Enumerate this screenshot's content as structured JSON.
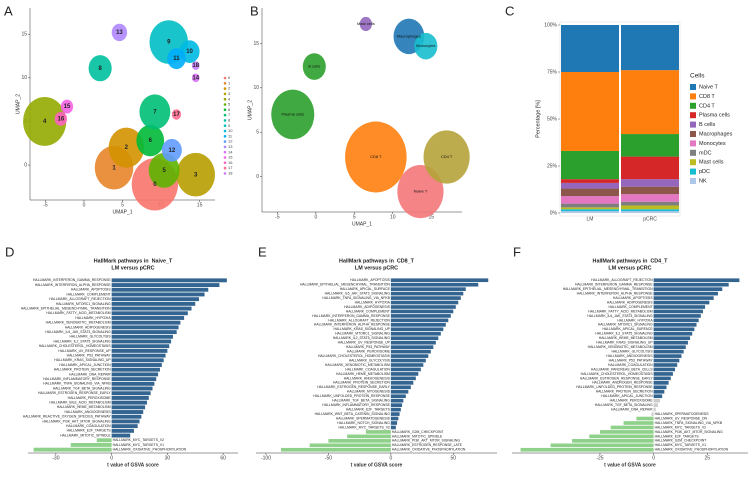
{
  "chart_data": [
    {
      "type": "scatter",
      "label": "A",
      "xlabel": "UMAP_1",
      "ylabel": "UMAP_2",
      "xlim": [
        -7,
        17
      ],
      "ylim": [
        -4,
        18
      ],
      "xticks": [
        -5,
        0,
        5,
        10,
        15
      ],
      "yticks": [
        0,
        5,
        10,
        15
      ],
      "legend": true,
      "points": {
        "labels": [
          "0",
          "1",
          "2",
          "3",
          "4",
          "5",
          "6",
          "7",
          "8",
          "9",
          "10",
          "11",
          "12",
          "13",
          "14",
          "15",
          "16",
          "17",
          "18"
        ],
        "x": [
          9.2,
          3.9,
          5.5,
          14.5,
          -5.1,
          10.4,
          8.6,
          9.2,
          2.1,
          11,
          13.7,
          12,
          11.4,
          4.6,
          14.5,
          -2.2,
          -3,
          12,
          14.5
        ],
        "y": [
          -2.2,
          -0.3,
          2,
          -1.1,
          5,
          -0.6,
          2.8,
          6.1,
          11.1,
          14.1,
          13,
          12.2,
          1.7,
          15.2,
          10,
          6.7,
          5.3,
          5.8,
          11.4
        ],
        "sizes": [
          3,
          2.5,
          2.3,
          2.5,
          2.8,
          2,
          1.8,
          2,
          1.5,
          2.5,
          1.3,
          1.2,
          1.3,
          1,
          0.5,
          0.8,
          0.8,
          0.6,
          0.5
        ],
        "colors": [
          "#F8766D",
          "#E8852B",
          "#D39200",
          "#B79F00",
          "#93AA00",
          "#5EB300",
          "#00BA38",
          "#00BF74",
          "#00C19F",
          "#00BFC4",
          "#00B9E3",
          "#00ADFA",
          "#619CFF",
          "#AE87FF",
          "#DB72FB",
          "#F564E3",
          "#FF61C3",
          "#FF6C91",
          "#C77CFF"
        ]
      }
    },
    {
      "type": "scatter",
      "label": "B",
      "xlabel": "UMAP_1",
      "ylabel": "UMAP_2",
      "xlim": [
        -7,
        19
      ],
      "ylim": [
        -4,
        19
      ],
      "xticks": [
        -5,
        0,
        5,
        10,
        15
      ],
      "yticks": [
        0,
        5,
        10,
        15
      ],
      "legend": false,
      "points": {
        "labels": [
          "Plasma cells",
          "B cells",
          "Mast cells",
          "Macrophages",
          "Monocytes",
          "CD8 T",
          "Naive T",
          "CD4 T"
        ],
        "x": [
          -3,
          -0.2,
          6.5,
          12.1,
          14.3,
          7.8,
          13.6,
          17
        ],
        "y": [
          7,
          12.4,
          17.2,
          15.8,
          14.7,
          2.2,
          -1.7,
          2.2
        ],
        "sizes": [
          2.8,
          1.5,
          0.8,
          2,
          1.5,
          4,
          3,
          3
        ],
        "colors": [
          "#2ca02c",
          "#2ca02c",
          "#9467bd",
          "#1f77b4",
          "#17becf",
          "#ff7f0e",
          "#f4777a",
          "#b5a33a"
        ]
      }
    },
    {
      "type": "bar",
      "stacked": true,
      "label": "C",
      "ylabel": "Percentage [%]",
      "legend_title": "Cells",
      "categories": [
        "LM",
        "pCRC"
      ],
      "ylim": [
        0,
        100
      ],
      "yticks": [
        {
          "value": 0,
          "label": "0%"
        },
        {
          "value": 25,
          "label": "25%"
        },
        {
          "value": 50,
          "label": "50%"
        },
        {
          "value": 75,
          "label": "75%"
        },
        {
          "value": 100,
          "label": "100%"
        }
      ],
      "series": [
        {
          "name": "Naive T",
          "color": "#1f77b4",
          "values": [
            25,
            24
          ]
        },
        {
          "name": "CD8 T",
          "color": "#ff7f0e",
          "values": [
            42,
            34
          ]
        },
        {
          "name": "CD4 T",
          "color": "#2ca02c",
          "values": [
            15,
            12
          ]
        },
        {
          "name": "Plasma cells",
          "color": "#d62728",
          "values": [
            2,
            12
          ]
        },
        {
          "name": "B cells",
          "color": "#9467bd",
          "values": [
            3,
            4
          ]
        },
        {
          "name": "Macrophages",
          "color": "#8c564b",
          "values": [
            4,
            4
          ]
        },
        {
          "name": "Monocytes",
          "color": "#e377c2",
          "values": [
            4,
            4
          ]
        },
        {
          "name": "mDC",
          "color": "#7f7f7f",
          "values": [
            2,
            2
          ]
        },
        {
          "name": "Mast cells",
          "color": "#bcbd22",
          "values": [
            1,
            2
          ]
        },
        {
          "name": "pDC",
          "color": "#17becf",
          "values": [
            1,
            1
          ]
        },
        {
          "name": "NK",
          "color": "#aec7e8",
          "values": [
            1,
            1
          ]
        }
      ]
    },
    {
      "type": "barh",
      "label": "D",
      "title": "HallMark pathways in  Naive_T",
      "subtitle": "LM versus pCRC",
      "xlabel": "t value of GSVA score",
      "xlim": [
        -45,
        68
      ],
      "xticks": [
        -30,
        0,
        30,
        60
      ],
      "color_up": "#346591",
      "color_down": "#8fd18a",
      "categories": [
        "HALLMARK_INTERFERON_GAMMA_RESPONSE",
        "HALLMARK_INTERFERON_ALPHA_RESPONSE",
        "HALLMARK_APOPTOSIS",
        "HALLMARK_COMPLEMENT",
        "HALLMARK_ALLOGRAFT_REJECTION",
        "HALLMARK_MTORC1_SIGNALING",
        "HALLMARK_EPITHELIAL_MESENCHYMAL_TRANSITION",
        "HALLMARK_FATTY_ACID_METABOLISM",
        "HALLMARK_HYPOXIA",
        "HALLMARK_XENOBIOTIC_METABOLISM",
        "HALLMARK_ADIPOGENESIS",
        "HALLMARK_IL6_JAK_STAT3_SIGNALING",
        "HALLMARK_GLYCOLYSIS",
        "HALLMARK_IL2_STAT5_SIGNALING",
        "HALLMARK_CHOLESTEROL_HOMEOSTASIS",
        "HALLMARK_UV_RESPONSE_UP",
        "HALLMARK_P53_PATHWAY",
        "HALLMARK_KRAS_SIGNALING_UP",
        "HALLMARK_APICAL_JUNCTION",
        "HALLMARK_PROTEIN_SECRETION",
        "HALLMARK_DNA_REPAIR",
        "HALLMARK_INFLAMMATORY_RESPONSE",
        "HALLMARK_TNFA_SIGNALING_VIA_NFKB",
        "HALLMARK_TGF_BETA_SIGNALING",
        "HALLMARK_ESTROGEN_RESPONSE_EARLY",
        "HALLMARK_PEROXISOME",
        "HALLMARK_BILE_ACID_METABOLISM",
        "HALLMARK_HEME_METABOLISM",
        "HALLMARK_ANGIOGENESIS",
        "HALLMARK_REACTIVE_OXYGEN_SPECIES_PATHWAY",
        "HALLMARK_PI3K_AKT_MTOR_SIGNALING",
        "HALLMARK_COAGULATION",
        "HALLMARK_E2F_TARGETS",
        "HALLMARK_MITOTIC_SPINDLE",
        "HALLMARK_MYC_TARGETS_V2",
        "HALLMARK_MYC_TARGETS_V1",
        "HALLMARK_OXIDATIVE_PHOSPHORYLATION"
      ],
      "values": [
        62,
        58,
        52,
        50,
        47,
        45,
        43,
        41,
        39,
        37,
        36,
        35,
        33,
        32,
        31,
        30,
        29,
        28,
        27,
        26,
        25,
        24,
        23,
        22,
        21,
        20,
        19,
        18,
        17,
        16,
        15,
        14,
        12,
        10,
        -8,
        -22,
        -42
      ]
    },
    {
      "type": "barh",
      "label": "E",
      "title": "HallMark pathways in  CD8_T",
      "subtitle": "LM versus pCRC",
      "xlabel": "t value of GSVA score",
      "xlim": [
        -108,
        85
      ],
      "xticks": [
        -100,
        -50,
        0,
        50
      ],
      "color_up": "#346591",
      "color_down": "#8fd18a",
      "categories": [
        "HALLMARK_APOPTOSIS",
        "HALLMARK_EPITHELIAL_MESENCHYMAL_TRANSITION",
        "HALLMARK_APICAL_SURFACE",
        "HALLMARK_IL6_JAK_STAT3_SIGNALING",
        "HALLMARK_TNFA_SIGNALING_VIA_NFKB",
        "HALLMARK_HYPOXIA",
        "HALLMARK_ADIPOGENESIS",
        "HALLMARK_COMPLEMENT",
        "HALLMARK_INTERFERON_GAMMA_RESPONSE",
        "HALLMARK_ALLOGRAFT_REJECTION",
        "HALLMARK_INTERFERON_ALPHA_RESPONSE",
        "HALLMARK_KRAS_SIGNALING_UP",
        "HALLMARK_MTORC1_SIGNALING",
        "HALLMARK_IL2_STAT5_SIGNALING",
        "HALLMARK_UV_RESPONSE_UP",
        "HALLMARK_P53_PATHWAY",
        "HALLMARK_PEROXISOME",
        "HALLMARK_CHOLESTEROL_HOMEOSTASIS",
        "HALLMARK_GLYCOLYSIS",
        "HALLMARK_XENOBIOTIC_METABOLISM",
        "HALLMARK_COAGULATION",
        "HALLMARK_HEME_METABOLISM",
        "HALLMARK_ANGIOGENESIS",
        "HALLMARK_PROTEIN_SECRETION",
        "HALLMARK_ESTROGEN_RESPONSE_EARLY",
        "HALLMARK_MYOGENESIS",
        "HALLMARK_UNFOLDED_PROTEIN_RESPONSE",
        "HALLMARK_TGF_BETA_SIGNALING",
        "HALLMARK_INFLAMMATORY_RESPONSE",
        "HALLMARK_E2F_TARGETS",
        "HALLMARK_WNT_BETA_CATENIN_SIGNALING",
        "HALLMARK_SPERMATOGENESIS",
        "HALLMARK_NOTCH_SIGNALING",
        "HALLMARK_MYC_TARGETS_V2",
        "HALLMARK_G2M_CHECKPOINT",
        "HALLMARK_MITOTIC_SPINDLE",
        "HALLMARK_PI3K_AKT_MTOR_SIGNALING",
        "HALLMARK_ESTROGEN_RESPONSE_LATE",
        "HALLMARK_OXIDATIVE_PHOSPHORYLATION"
      ],
      "values": [
        78,
        70,
        60,
        58,
        56,
        54,
        52,
        50,
        48,
        46,
        44,
        42,
        40,
        38,
        36,
        34,
        32,
        30,
        28,
        26,
        24,
        22,
        20,
        18,
        16,
        14,
        12,
        10,
        9,
        8,
        7,
        6,
        5,
        4,
        -20,
        -35,
        -50,
        -65,
        -88
      ]
    },
    {
      "type": "barh",
      "label": "F",
      "title": "HallMark pathways in  CD4_T",
      "subtitle": "LM versus pCRC",
      "xlabel": "t value of GSVA score",
      "xlim": [
        -66,
        44
      ],
      "xticks": [
        -25,
        0,
        25
      ],
      "categories": [
        "HALLMARK_ALLOGRAFT_REJECTION",
        "HALLMARK_INTERFERON_GAMMA_RESPONSE",
        "HALLMARK_EPITHELIAL_MESENCHYMAL_TRANSITION",
        "HALLMARK_INTERFERON_ALPHA_RESPONSE",
        "HALLMARK_APOPTOSIS",
        "HALLMARK_ADIPOGENESIS",
        "HALLMARK_COMPLEMENT",
        "HALLMARK_FATTY_ACID_METABOLISM",
        "HALLMARK_IL6_JAK_STAT3_SIGNALING",
        "HALLMARK_HYPOXIA",
        "HALLMARK_MTORC1_SIGNALING",
        "HALLMARK_APICAL_SURFACE",
        "HALLMARK_IL2_STAT5_SIGNALING",
        "HALLMARK_HEME_METABOLISM",
        "HALLMARK_KRAS_SIGNALING_UP",
        "HALLMARK_XENOBIOTIC_METABOLISM",
        "HALLMARK_GLYCOLYSIS",
        "HALLMARK_ANGIOGENESIS",
        "HALLMARK_P53_PATHWAY",
        "HALLMARK_COAGULATION",
        "HALLMARK_PANCREAS_BETA_CELLS",
        "HALLMARK_CHOLESTEROL_HOMEOSTASIS",
        "HALLMARK_ESTROGEN_RESPONSE_EARLY",
        "HALLMARK_ANDROGEN_RESPONSE",
        "HALLMARK_UNFOLDED_PROTEIN_RESPONSE",
        "HALLMARK_PROTEIN_SECRETION",
        "HALLMARK_APICAL_JUNCTION",
        "HALLMARK_PEROXISOME",
        "HALLMARK_TGF_BETA_SIGNALING",
        "HALLMARK_DNA_REPAIR",
        "HALLMARK_SPERMATOGENESIS",
        "HALLMARK_UV_RESPONSE_DN",
        "HALLMARK_TNFA_SIGNALING_VIA_NFKB",
        "HALLMARK_MYC_TARGETS_V2",
        "HALLMARK_PI3K_AKT_MTOR_SIGNALING",
        "HALLMARK_E2F_TARGETS",
        "HALLMARK_G2M_CHECKPOINT",
        "HALLMARK_MYC_TARGETS_V1",
        "HALLMARK_OXIDATIVE_PHOSPHORYLATION"
      ],
      "values": [
        40,
        35,
        32,
        30,
        28,
        26,
        24,
        23,
        22,
        21,
        20,
        19,
        18,
        17,
        16,
        15,
        14,
        13,
        12,
        11,
        10,
        9,
        8,
        7,
        6,
        5,
        4,
        3,
        2,
        1,
        -1,
        -8,
        -14,
        -20,
        -25,
        -30,
        -38,
        -48,
        -62
      ],
      "colors": [
        "#346591",
        "#346591",
        "#346591",
        "#346591",
        "#346591",
        "#346591",
        "#346591",
        "#346591",
        "#346591",
        "#346591",
        "#346591",
        "#346591",
        "#346591",
        "#346591",
        "#346591",
        "#346591",
        "#346591",
        "#346591",
        "#346591",
        "#346591",
        "#346591",
        "#346591",
        "#346591",
        "#346591",
        "#346591",
        "#346591",
        "#346591",
        "#cccccc",
        "#cccccc",
        "#cccccc",
        "#cccccc",
        "#8fd18a",
        "#8fd18a",
        "#8fd18a",
        "#8fd18a",
        "#8fd18a",
        "#8fd18a",
        "#8fd18a",
        "#8fd18a"
      ]
    }
  ]
}
